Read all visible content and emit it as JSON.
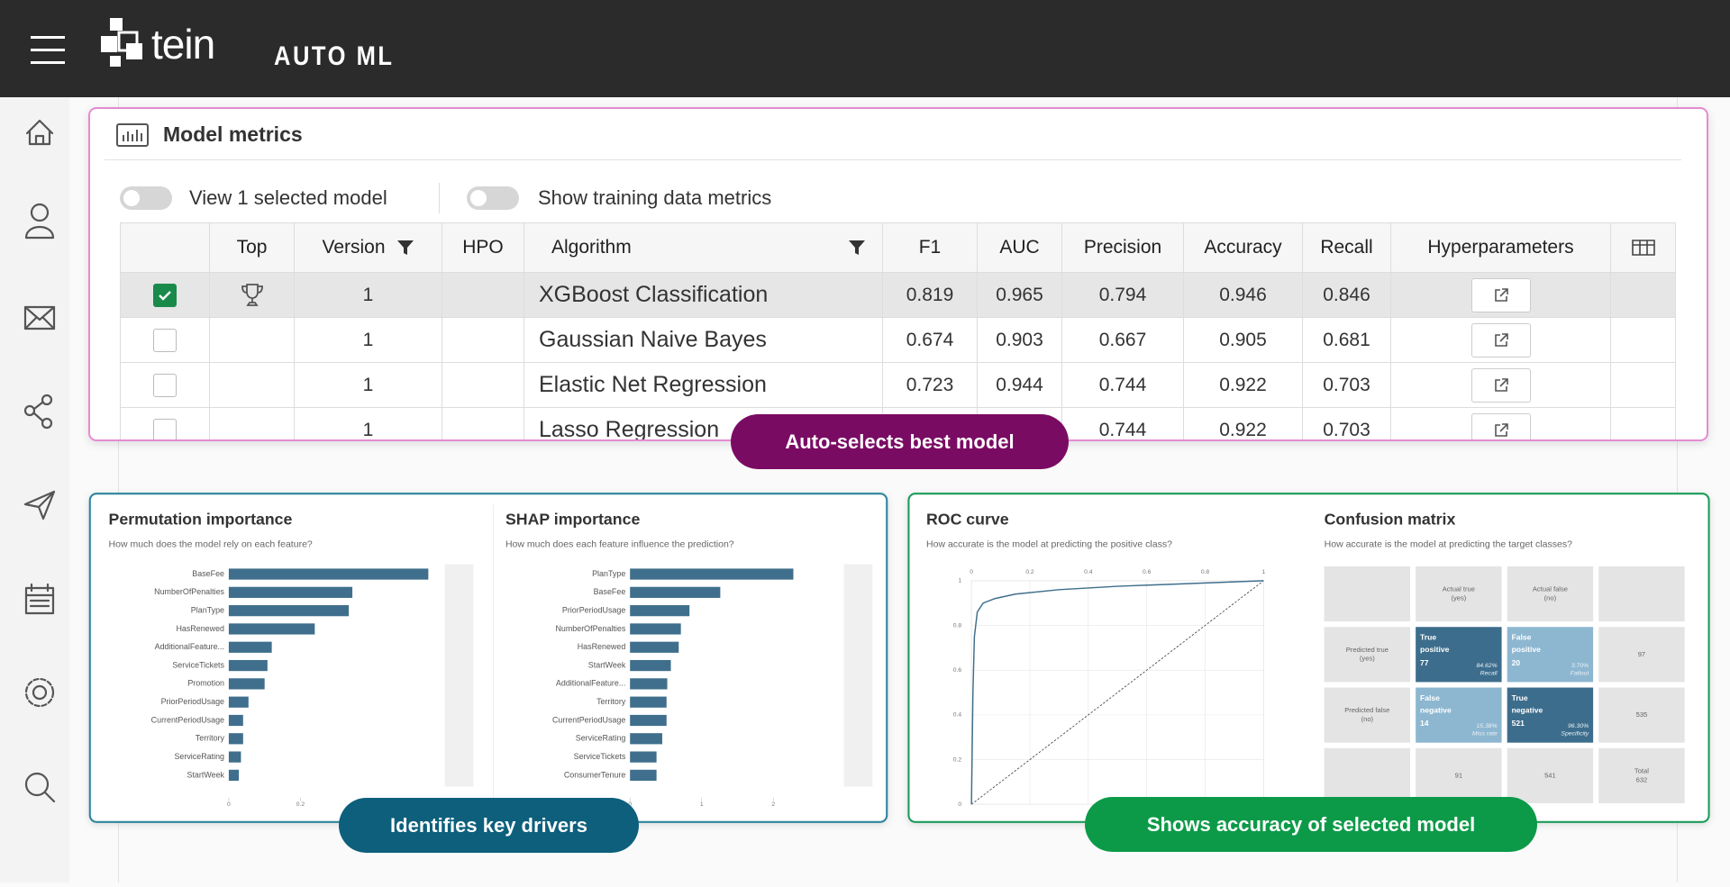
{
  "header": {
    "logo_text": "tein",
    "app_name": "AUTO ML"
  },
  "model_metrics": {
    "title": "Model metrics",
    "toggles": [
      "View 1 selected model",
      "Show training data metrics"
    ],
    "table": {
      "columns": [
        "Top",
        "Version",
        "HPO",
        "Algorithm",
        "F1",
        "AUC",
        "Precision",
        "Accuracy",
        "Recall",
        "Hyperparameters"
      ],
      "rows": [
        {
          "selected": true,
          "best": true,
          "version": 1,
          "algorithm": "XGBoost Classification",
          "f1": 0.819,
          "auc": 0.965,
          "precision": 0.794,
          "accuracy": 0.946,
          "recall": 0.846
        },
        {
          "selected": false,
          "best": false,
          "version": 1,
          "algorithm": "Gaussian Naive Bayes",
          "f1": 0.674,
          "auc": 0.903,
          "precision": 0.667,
          "accuracy": 0.905,
          "recall": 0.681
        },
        {
          "selected": false,
          "best": false,
          "version": 1,
          "algorithm": "Elastic Net Regression",
          "f1": 0.723,
          "auc": 0.944,
          "precision": 0.744,
          "accuracy": 0.922,
          "recall": 0.703
        },
        {
          "selected": false,
          "best": false,
          "version": 1,
          "algorithm": "Lasso Regression",
          "precision": 0.744,
          "accuracy": 0.922,
          "recall": 0.703
        }
      ]
    }
  },
  "callouts": [
    "Auto-selects best model",
    "Identifies key drivers",
    "Shows accuracy of selected model"
  ],
  "permutation_importance": {
    "type": "bar",
    "title": "Permutation importance",
    "subtitle": "How much does the model rely on each feature?",
    "categories": [
      "BaseFee",
      "NumberOfPenalties",
      "PlanType",
      "HasRenewed",
      "AdditionalFeature...",
      "ServiceTickets",
      "Promotion",
      "PriorPeriodUsage",
      "CurrentPeriodUsage",
      "Territory",
      "ServiceRating",
      "StartWeek"
    ],
    "values": [
      0.557,
      0.345,
      0.335,
      0.24,
      0.12,
      0.108,
      0.1,
      0.055,
      0.04,
      0.04,
      0.034,
      0.028
    ],
    "color": "#3f6f8c",
    "xlim": [
      0,
      0.6
    ],
    "xticks": [
      0,
      0.2
    ]
  },
  "shap_importance": {
    "type": "bar",
    "title": "SHAP importance",
    "subtitle": "How much does each feature influence the prediction?",
    "categories": [
      "PlanType",
      "BaseFee",
      "PriorPeriodUsage",
      "NumberOfPenalties",
      "HasRenewed",
      "StartWeek",
      "AdditionalFeature...",
      "Territory",
      "CurrentPeriodUsage",
      "ServiceRating",
      "ServiceTickets",
      "ConsumerTenure"
    ],
    "values": [
      2.28,
      1.26,
      0.83,
      0.71,
      0.68,
      0.57,
      0.52,
      0.51,
      0.51,
      0.45,
      0.37,
      0.37
    ],
    "color": "#3f6f8c",
    "xlim": [
      0,
      2.5
    ],
    "xticks": [
      0,
      1,
      2
    ]
  },
  "roc_curve": {
    "type": "line",
    "title": "ROC curve",
    "subtitle": "How accurate is the model at predicting the positive class?",
    "x": [
      0,
      0.005,
      0.01,
      0.02,
      0.04,
      0.08,
      0.15,
      0.3,
      0.5,
      0.7,
      0.9,
      1
    ],
    "values": [
      0,
      0.5,
      0.75,
      0.86,
      0.9,
      0.92,
      0.94,
      0.96,
      0.975,
      0.985,
      0.995,
      1
    ],
    "color": "#3f6f8c",
    "xlim": [
      0,
      1
    ],
    "ylim": [
      0,
      1
    ],
    "xticks": [
      0,
      0.2,
      0.4,
      0.6,
      0.8,
      1
    ],
    "yticks": [
      0,
      0.2,
      0.4,
      0.6,
      0.8,
      1
    ],
    "grid": true
  },
  "confusion_matrix": {
    "title": "Confusion matrix",
    "subtitle": "How accurate is the model at predicting the target classes?",
    "actual_headers": [
      [
        "Actual true",
        "(yes)"
      ],
      [
        "Actual false",
        "(no)"
      ]
    ],
    "predicted_headers": [
      [
        "Predicted true",
        "(yes)"
      ],
      [
        "Predicted false",
        "(no)"
      ]
    ],
    "cells": [
      [
        {
          "name": [
            "True",
            "positive"
          ],
          "count": 77,
          "percent": "84.62%",
          "metric": "Recall",
          "color": "#3d6d8c"
        },
        {
          "name": [
            "False",
            "positive"
          ],
          "count": 20,
          "percent": "3.70%",
          "metric": "Fallout",
          "color": "#8db7d1"
        }
      ],
      [
        {
          "name": [
            "False",
            "negative"
          ],
          "count": 14,
          "percent": "15.38%",
          "metric": "Miss rate",
          "color": "#8db7d1"
        },
        {
          "name": [
            "True",
            "negative"
          ],
          "count": 521,
          "percent": "96.30%",
          "metric": "Specificity",
          "color": "#3d6d8c"
        }
      ]
    ],
    "row_totals": [
      97,
      535
    ],
    "column_totals": [
      91,
      541
    ],
    "total_label": "Total",
    "total": 632
  }
}
